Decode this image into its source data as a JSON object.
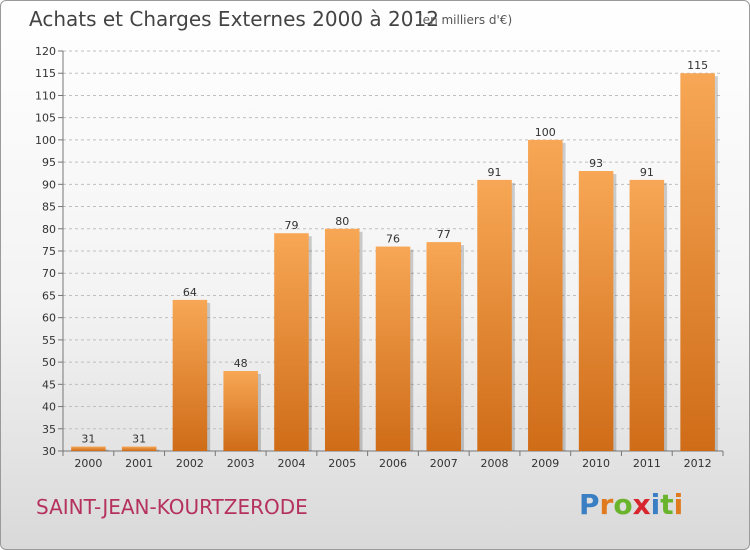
{
  "header": {
    "title": "Achats et Charges Externes 2000 à 2012",
    "subtitle": "(en milliers d'€)"
  },
  "footer": {
    "commune": "SAINT-JEAN-KOURTZERODE",
    "logo": {
      "text": "Proxiti",
      "letter_colors": [
        "#3a7fc4",
        "#e07a1f",
        "#6ab42d",
        "#d8262e",
        "#3a7fc4",
        "#6ab42d",
        "#e07a1f"
      ]
    }
  },
  "colors": {
    "bar_top": "#f7a755",
    "bar_bottom": "#cf6c18",
    "grid": "#bfbfbf",
    "axis": "#777777"
  },
  "chart_data": {
    "type": "bar",
    "categories": [
      "2000",
      "2001",
      "2002",
      "2003",
      "2004",
      "2005",
      "2006",
      "2007",
      "2008",
      "2009",
      "2010",
      "2011",
      "2012"
    ],
    "values": [
      31,
      31,
      64,
      48,
      79,
      80,
      76,
      77,
      91,
      100,
      93,
      91,
      115
    ],
    "data_labels": [
      "31",
      "31",
      "64",
      "48",
      "79",
      "80",
      "76",
      "77",
      "91",
      "100",
      "93",
      "91",
      "115"
    ],
    "y_ticks": [
      "30",
      "35",
      "40",
      "45",
      "50",
      "55",
      "60",
      "65",
      "70",
      "75",
      "80",
      "85",
      "90",
      "95",
      "100",
      "105",
      "110",
      "115",
      "120"
    ],
    "ylim": [
      30,
      120
    ],
    "grid": true
  }
}
